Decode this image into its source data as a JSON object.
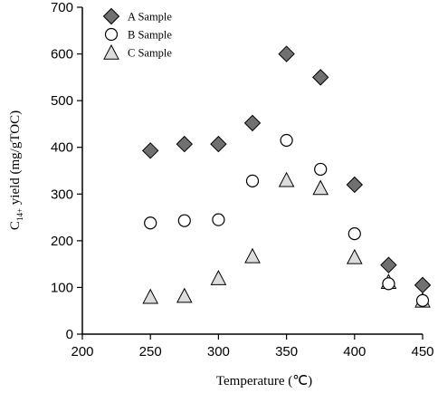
{
  "chart_data": {
    "type": "scatter",
    "xlabel": "Temperature (℃)",
    "ylabel_main": "C",
    "ylabel_sub": "14+",
    "ylabel_rest": " yield (mg/gTOC)",
    "xlim": [
      200,
      450
    ],
    "ylim": [
      0,
      700
    ],
    "xticks": [
      200,
      250,
      300,
      350,
      400,
      450
    ],
    "yticks": [
      0,
      100,
      200,
      300,
      400,
      500,
      600,
      700
    ],
    "grid": false,
    "legend_position": "top-left",
    "series": [
      {
        "name": "A Sample",
        "marker": "diamond",
        "fill": "#707070",
        "points": [
          {
            "x": 250,
            "y": 393
          },
          {
            "x": 275,
            "y": 407
          },
          {
            "x": 300,
            "y": 407
          },
          {
            "x": 325,
            "y": 452
          },
          {
            "x": 350,
            "y": 600
          },
          {
            "x": 375,
            "y": 550
          },
          {
            "x": 400,
            "y": 320
          },
          {
            "x": 425,
            "y": 148
          },
          {
            "x": 450,
            "y": 105
          }
        ]
      },
      {
        "name": "B Sample",
        "marker": "circle",
        "fill": "#ffffff",
        "points": [
          {
            "x": 250,
            "y": 238
          },
          {
            "x": 275,
            "y": 243
          },
          {
            "x": 300,
            "y": 245
          },
          {
            "x": 325,
            "y": 328
          },
          {
            "x": 350,
            "y": 415
          },
          {
            "x": 375,
            "y": 353
          },
          {
            "x": 400,
            "y": 215
          },
          {
            "x": 425,
            "y": 108
          },
          {
            "x": 450,
            "y": 72
          }
        ]
      },
      {
        "name": "C Sample",
        "marker": "triangle",
        "fill": "#dcdcdc",
        "points": [
          {
            "x": 250,
            "y": 80
          },
          {
            "x": 275,
            "y": 82
          },
          {
            "x": 300,
            "y": 120
          },
          {
            "x": 325,
            "y": 167
          },
          {
            "x": 350,
            "y": 330
          },
          {
            "x": 375,
            "y": 313
          },
          {
            "x": 400,
            "y": 165
          },
          {
            "x": 425,
            "y": 112
          },
          {
            "x": 450,
            "y": 72
          }
        ]
      }
    ]
  }
}
